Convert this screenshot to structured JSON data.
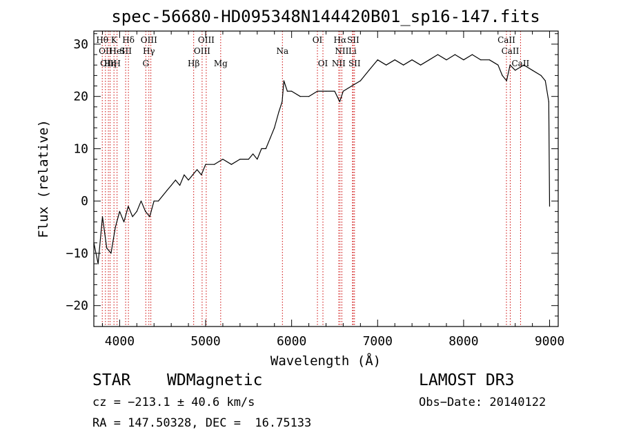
{
  "chart_data": {
    "type": "line",
    "title": "spec-56680-HD095348N144420B01_sp16-147.fits",
    "xlabel": "Wavelength (Å)",
    "ylabel": "Flux (relative)",
    "xlim": [
      3700,
      9100
    ],
    "ylim": [
      -24,
      32.5
    ],
    "xticks": [
      4000,
      5000,
      6000,
      7000,
      8000,
      9000
    ],
    "yticks": [
      -20,
      -10,
      0,
      10,
      20,
      30
    ],
    "xtick_labels": [
      "4000",
      "5000",
      "6000",
      "7000",
      "8000",
      "9000"
    ],
    "ytick_labels": [
      "−20",
      "−10",
      "0",
      "10",
      "20",
      "30"
    ],
    "grid": false,
    "series": [
      {
        "color": "#000000",
        "x": [
          3700,
          3750,
          3800,
          3850,
          3900,
          3950,
          4000,
          4050,
          4100,
          4150,
          4200,
          4250,
          4300,
          4350,
          4400,
          4450,
          4500,
          4550,
          4600,
          4650,
          4700,
          4750,
          4800,
          4850,
          4900,
          4950,
          5000,
          5100,
          5200,
          5300,
          5400,
          5500,
          5550,
          5600,
          5650,
          5700,
          5750,
          5800,
          5850,
          5890,
          5910,
          5950,
          6000,
          6100,
          6200,
          6300,
          6400,
          6500,
          6560,
          6600,
          6700,
          6800,
          6900,
          7000,
          7100,
          7200,
          7300,
          7400,
          7500,
          7600,
          7700,
          7800,
          7900,
          8000,
          8100,
          8200,
          8300,
          8400,
          8450,
          8500,
          8540,
          8600,
          8700,
          8800,
          8900,
          8950,
          8990,
          9000
        ],
        "y": [
          -8,
          -12,
          -3,
          -9,
          -10,
          -5,
          -2,
          -4,
          -1,
          -3,
          -2,
          0,
          -2,
          -3,
          0,
          0,
          1,
          2,
          3,
          4,
          3,
          5,
          4,
          5,
          6,
          5,
          7,
          7,
          8,
          7,
          8,
          8,
          9,
          8,
          10,
          10,
          12,
          14,
          17,
          19,
          23,
          21,
          21,
          20,
          20,
          21,
          21,
          21,
          19,
          21,
          22,
          23,
          25,
          27,
          26,
          27,
          26,
          27,
          26,
          27,
          28,
          27,
          28,
          27,
          28,
          27,
          27,
          26,
          24,
          23,
          26,
          25,
          26,
          25,
          24,
          23,
          19,
          -1
        ]
      }
    ],
    "line_labels": [
      {
        "x": 3798,
        "row": 1,
        "label": "Hθ"
      },
      {
        "x": 3835,
        "row": 2,
        "label": "OII"
      },
      {
        "x": 3869,
        "row": 3,
        "label": "OIII"
      },
      {
        "x": 3889,
        "row": 3,
        "label": "Hη"
      },
      {
        "x": 3934,
        "row": 1,
        "label": "K"
      },
      {
        "x": 3970,
        "row": 2,
        "label": "HeI"
      },
      {
        "x": 3970,
        "row": 3,
        "label": "H"
      },
      {
        "x": 4070,
        "row": 2,
        "label": "SII"
      },
      {
        "x": 4102,
        "row": 1,
        "label": "Hδ"
      },
      {
        "x": 4340,
        "row": 1,
        "label": "OIII"
      },
      {
        "x": 4340,
        "row": 2,
        "label": "Hγ"
      },
      {
        "x": 4304,
        "row": 3,
        "label": "G"
      },
      {
        "x": 4861,
        "row": 3,
        "label": "Hβ"
      },
      {
        "x": 5007,
        "row": 1,
        "label": "OIII"
      },
      {
        "x": 4959,
        "row": 2,
        "label": "OIII"
      },
      {
        "x": 5175,
        "row": 3,
        "label": "Mg"
      },
      {
        "x": 5893,
        "row": 2,
        "label": "Na"
      },
      {
        "x": 6300,
        "row": 1,
        "label": "OI"
      },
      {
        "x": 6364,
        "row": 3,
        "label": "OI"
      },
      {
        "x": 6563,
        "row": 1,
        "label": "Hα"
      },
      {
        "x": 6584,
        "row": 2,
        "label": "NII"
      },
      {
        "x": 6548,
        "row": 3,
        "label": "NII"
      },
      {
        "x": 6716,
        "row": 1,
        "label": "SII"
      },
      {
        "x": 6708,
        "row": 2,
        "label": "Li"
      },
      {
        "x": 6731,
        "row": 3,
        "label": "SII"
      },
      {
        "x": 8498,
        "row": 1,
        "label": "CaII"
      },
      {
        "x": 8542,
        "row": 2,
        "label": "CaII"
      },
      {
        "x": 8662,
        "row": 3,
        "label": "CaII"
      }
    ],
    "line_positions": [
      3798,
      3835,
      3869,
      3889,
      3934,
      3970,
      4070,
      4102,
      4304,
      4340,
      4363,
      4861,
      4959,
      5007,
      5175,
      5893,
      6300,
      6364,
      6548,
      6563,
      6584,
      6708,
      6716,
      6731,
      8498,
      8542,
      8662
    ],
    "line_color": "#cc0000"
  },
  "footer": {
    "object_type": "STAR",
    "subclass": "WDMagnetic",
    "survey": "LAMOST DR3",
    "cz": "cz = −213.1 ± 40.6 km/s",
    "obs_date": "Obs−Date: 20140122",
    "radec": "RA = 147.50328, DEC =  16.75133"
  }
}
